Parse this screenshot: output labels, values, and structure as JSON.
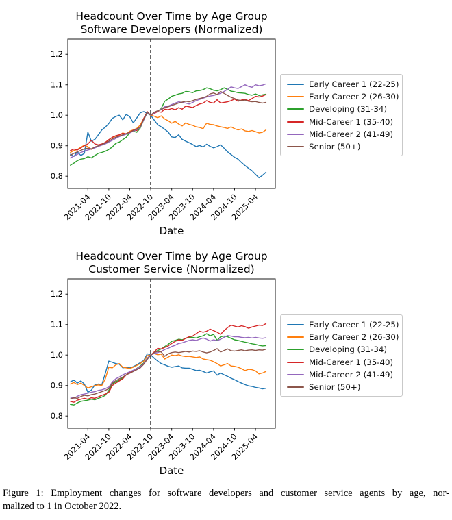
{
  "caption": {
    "line1": "Figure 1: Employment changes for software developers and customer service agents by age, nor-",
    "line2": "malized to 1 in October 2022."
  },
  "chart_data": [
    {
      "type": "line",
      "title_line1": "Headcount Over Time by Age Group",
      "title_line2": "Software Developers (Normalized)",
      "xlabel": "Date",
      "ylabel": "",
      "ylim": [
        0.76,
        1.25
      ],
      "y_tick_labels": [
        "0.8",
        "0.9",
        "1.0",
        "1.1",
        "1.2"
      ],
      "x_tick_labels": [
        "2021-04",
        "2021-10",
        "2022-04",
        "2022-10",
        "2023-04",
        "2023-10",
        "2024-04",
        "2024-10",
        "2025-04"
      ],
      "vline_x": "2022-10",
      "vline_style": "dashed",
      "legend_position": "right",
      "grid": false,
      "x": [
        "2020-11",
        "2020-12",
        "2021-01",
        "2021-02",
        "2021-03",
        "2021-04",
        "2021-05",
        "2021-06",
        "2021-07",
        "2021-08",
        "2021-09",
        "2021-10",
        "2021-11",
        "2021-12",
        "2022-01",
        "2022-02",
        "2022-03",
        "2022-04",
        "2022-05",
        "2022-06",
        "2022-07",
        "2022-08",
        "2022-09",
        "2022-10",
        "2022-11",
        "2022-12",
        "2023-01",
        "2023-02",
        "2023-03",
        "2023-04",
        "2023-05",
        "2023-06",
        "2023-07",
        "2023-08",
        "2023-09",
        "2023-10",
        "2023-11",
        "2023-12",
        "2024-01",
        "2024-02",
        "2024-03",
        "2024-04",
        "2024-05",
        "2024-06",
        "2024-07",
        "2024-08",
        "2024-09",
        "2024-10",
        "2024-11",
        "2024-12",
        "2025-01",
        "2025-02",
        "2025-03",
        "2025-04",
        "2025-05",
        "2025-06",
        "2025-07"
      ],
      "series": [
        {
          "name": "Early Career 1 (22-25)",
          "color": "#1f77b4",
          "values": [
            0.872,
            0.865,
            0.88,
            0.868,
            0.875,
            0.945,
            0.915,
            0.921,
            0.936,
            0.952,
            0.961,
            0.973,
            0.99,
            0.996,
            1.0,
            0.985,
            1.003,
            0.995,
            0.975,
            0.991,
            1.008,
            1.012,
            1.006,
            1.0,
            0.984,
            0.969,
            0.962,
            0.954,
            0.945,
            0.929,
            0.927,
            0.936,
            0.921,
            0.915,
            0.91,
            0.904,
            0.897,
            0.901,
            0.896,
            0.905,
            0.898,
            0.893,
            0.897,
            0.903,
            0.892,
            0.88,
            0.871,
            0.862,
            0.856,
            0.845,
            0.835,
            0.826,
            0.818,
            0.806,
            0.795,
            0.803,
            0.813
          ]
        },
        {
          "name": "Early Career 2 (26-30)",
          "color": "#ff7f0e",
          "values": [
            0.878,
            0.884,
            0.888,
            0.895,
            0.902,
            0.897,
            0.888,
            0.894,
            0.9,
            0.905,
            0.911,
            0.92,
            0.927,
            0.932,
            0.935,
            0.942,
            0.939,
            0.948,
            0.952,
            0.957,
            0.968,
            0.99,
            1.01,
            1.0,
            0.997,
            0.992,
            0.998,
            0.988,
            0.982,
            0.974,
            0.98,
            0.971,
            0.965,
            0.975,
            0.97,
            0.967,
            0.962,
            0.96,
            0.956,
            0.974,
            0.97,
            0.969,
            0.965,
            0.962,
            0.96,
            0.957,
            0.962,
            0.956,
            0.952,
            0.955,
            0.949,
            0.947,
            0.95,
            0.946,
            0.942,
            0.944,
            0.952
          ]
        },
        {
          "name": "Developing (31-34)",
          "color": "#2ca02c",
          "values": [
            0.836,
            0.843,
            0.851,
            0.856,
            0.858,
            0.864,
            0.86,
            0.868,
            0.875,
            0.878,
            0.882,
            0.888,
            0.896,
            0.908,
            0.912,
            0.92,
            0.928,
            0.943,
            0.948,
            0.944,
            0.958,
            0.985,
            1.008,
            1.0,
            1.006,
            1.013,
            1.022,
            1.046,
            1.053,
            1.062,
            1.066,
            1.07,
            1.072,
            1.078,
            1.077,
            1.074,
            1.08,
            1.081,
            1.084,
            1.09,
            1.087,
            1.082,
            1.08,
            1.084,
            1.09,
            1.085,
            1.079,
            1.077,
            1.074,
            1.073,
            1.072,
            1.068,
            1.066,
            1.07,
            1.065,
            1.067,
            1.069
          ]
        },
        {
          "name": "Mid-Career 1 (35-40)",
          "color": "#d62728",
          "values": [
            0.884,
            0.889,
            0.886,
            0.893,
            0.9,
            0.906,
            0.918,
            0.906,
            0.903,
            0.906,
            0.911,
            0.92,
            0.928,
            0.933,
            0.936,
            0.941,
            0.938,
            0.945,
            0.951,
            0.95,
            0.962,
            0.99,
            1.012,
            1.0,
            1.006,
            1.012,
            1.01,
            1.02,
            1.018,
            1.022,
            1.018,
            1.025,
            1.02,
            1.03,
            1.028,
            1.025,
            1.032,
            1.037,
            1.04,
            1.048,
            1.042,
            1.04,
            1.051,
            1.04,
            1.042,
            1.044,
            1.048,
            1.053,
            1.046,
            1.05,
            1.052,
            1.048,
            1.055,
            1.062,
            1.06,
            1.063,
            1.068
          ]
        },
        {
          "name": "Mid-Career 2 (41-49)",
          "color": "#9467bd",
          "values": [
            0.86,
            0.866,
            0.872,
            0.878,
            0.882,
            0.886,
            0.889,
            0.893,
            0.898,
            0.902,
            0.906,
            0.912,
            0.918,
            0.924,
            0.93,
            0.934,
            0.938,
            0.942,
            0.948,
            0.953,
            0.96,
            0.985,
            1.009,
            1.0,
            1.008,
            1.014,
            1.02,
            1.028,
            1.03,
            1.035,
            1.04,
            1.044,
            1.042,
            1.04,
            1.037,
            1.042,
            1.048,
            1.052,
            1.056,
            1.06,
            1.063,
            1.065,
            1.068,
            1.072,
            1.078,
            1.085,
            1.093,
            1.09,
            1.088,
            1.094,
            1.1,
            1.095,
            1.092,
            1.1,
            1.097,
            1.099,
            1.103
          ]
        },
        {
          "name": "Senior (50+)",
          "color": "#8c564b",
          "values": [
            0.869,
            0.875,
            0.88,
            0.885,
            0.89,
            0.892,
            0.89,
            0.896,
            0.9,
            0.904,
            0.909,
            0.915,
            0.922,
            0.928,
            0.932,
            0.936,
            0.94,
            0.944,
            0.95,
            0.955,
            0.962,
            0.987,
            1.011,
            1.0,
            1.01,
            1.015,
            1.018,
            1.025,
            1.028,
            1.032,
            1.036,
            1.04,
            1.043,
            1.046,
            1.044,
            1.048,
            1.052,
            1.055,
            1.058,
            1.062,
            1.07,
            1.073,
            1.068,
            1.078,
            1.072,
            1.065,
            1.059,
            1.055,
            1.05,
            1.048,
            1.05,
            1.046,
            1.044,
            1.045,
            1.042,
            1.04,
            1.042
          ]
        }
      ]
    },
    {
      "type": "line",
      "title_line1": "Headcount Over Time by Age Group",
      "title_line2": "Customer Service (Normalized)",
      "xlabel": "Date",
      "ylabel": "",
      "ylim": [
        0.76,
        1.25
      ],
      "y_tick_labels": [
        "0.8",
        "0.9",
        "1.0",
        "1.1",
        "1.2"
      ],
      "x_tick_labels": [
        "2021-04",
        "2021-10",
        "2022-04",
        "2022-10",
        "2023-04",
        "2023-10",
        "2024-04",
        "2024-10",
        "2025-04"
      ],
      "vline_x": "2022-10",
      "vline_style": "dashed",
      "legend_position": "right",
      "grid": false,
      "x": [
        "2020-11",
        "2020-12",
        "2021-01",
        "2021-02",
        "2021-03",
        "2021-04",
        "2021-05",
        "2021-06",
        "2021-07",
        "2021-08",
        "2021-09",
        "2021-10",
        "2021-11",
        "2021-12",
        "2022-01",
        "2022-02",
        "2022-03",
        "2022-04",
        "2022-05",
        "2022-06",
        "2022-07",
        "2022-08",
        "2022-09",
        "2022-10",
        "2022-11",
        "2022-12",
        "2023-01",
        "2023-02",
        "2023-03",
        "2023-04",
        "2023-05",
        "2023-06",
        "2023-07",
        "2023-08",
        "2023-09",
        "2023-10",
        "2023-11",
        "2023-12",
        "2024-01",
        "2024-02",
        "2024-03",
        "2024-04",
        "2024-05",
        "2024-06",
        "2024-07",
        "2024-08",
        "2024-09",
        "2024-10",
        "2024-11",
        "2024-12",
        "2025-01",
        "2025-02",
        "2025-03",
        "2025-04",
        "2025-05",
        "2025-06",
        "2025-07"
      ],
      "series": [
        {
          "name": "Early Career 1 (22-25)",
          "color": "#1f77b4",
          "values": [
            0.912,
            0.918,
            0.908,
            0.915,
            0.905,
            0.878,
            0.885,
            0.902,
            0.905,
            0.903,
            0.94,
            0.98,
            0.976,
            0.972,
            0.97,
            0.958,
            0.96,
            0.958,
            0.962,
            0.968,
            0.975,
            0.982,
            1.004,
            1.0,
            0.99,
            0.98,
            0.972,
            0.968,
            0.963,
            0.96,
            0.962,
            0.964,
            0.958,
            0.957,
            0.957,
            0.953,
            0.949,
            0.95,
            0.946,
            0.941,
            0.945,
            0.948,
            0.934,
            0.941,
            0.935,
            0.93,
            0.924,
            0.919,
            0.913,
            0.908,
            0.903,
            0.899,
            0.897,
            0.894,
            0.892,
            0.889,
            0.891
          ]
        },
        {
          "name": "Early Career 2 (26-30)",
          "color": "#ff7f0e",
          "values": [
            0.905,
            0.91,
            0.903,
            0.908,
            0.9,
            0.892,
            0.896,
            0.9,
            0.902,
            0.9,
            0.922,
            0.96,
            0.958,
            0.968,
            0.972,
            0.96,
            0.958,
            0.956,
            0.96,
            0.966,
            0.972,
            0.98,
            0.998,
            1.0,
            1.005,
            1.001,
            1.003,
            0.987,
            0.993,
            1.0,
            0.998,
            1.001,
            0.997,
            0.995,
            0.996,
            0.994,
            0.992,
            0.994,
            0.987,
            0.985,
            0.983,
            0.978,
            0.972,
            0.964,
            0.968,
            0.972,
            0.964,
            0.963,
            0.96,
            0.955,
            0.949,
            0.953,
            0.952,
            0.948,
            0.938,
            0.941,
            0.946
          ]
        },
        {
          "name": "Developing (31-34)",
          "color": "#2ca02c",
          "values": [
            0.838,
            0.836,
            0.843,
            0.848,
            0.85,
            0.852,
            0.855,
            0.853,
            0.858,
            0.862,
            0.868,
            0.884,
            0.905,
            0.912,
            0.918,
            0.925,
            0.935,
            0.942,
            0.95,
            0.956,
            0.964,
            0.974,
            0.99,
            1.0,
            1.008,
            1.015,
            1.02,
            1.028,
            1.035,
            1.045,
            1.048,
            1.052,
            1.05,
            1.055,
            1.058,
            1.058,
            1.056,
            1.06,
            1.063,
            1.07,
            1.063,
            1.068,
            1.048,
            1.06,
            1.062,
            1.06,
            1.055,
            1.05,
            1.048,
            1.045,
            1.042,
            1.04,
            1.037,
            1.035,
            1.032,
            1.03,
            1.031
          ]
        },
        {
          "name": "Mid-Career 1 (35-40)",
          "color": "#d62728",
          "values": [
            0.848,
            0.845,
            0.852,
            0.855,
            0.858,
            0.855,
            0.86,
            0.858,
            0.863,
            0.868,
            0.872,
            0.878,
            0.9,
            0.908,
            0.915,
            0.922,
            0.935,
            0.942,
            0.948,
            0.955,
            0.962,
            0.972,
            0.988,
            1.0,
            1.01,
            1.022,
            1.02,
            1.025,
            1.03,
            1.038,
            1.045,
            1.05,
            1.048,
            1.055,
            1.06,
            1.062,
            1.07,
            1.078,
            1.075,
            1.078,
            1.085,
            1.08,
            1.075,
            1.068,
            1.08,
            1.09,
            1.098,
            1.095,
            1.092,
            1.096,
            1.093,
            1.088,
            1.092,
            1.095,
            1.098,
            1.097,
            1.103
          ]
        },
        {
          "name": "Mid-Career 2 (41-49)",
          "color": "#9467bd",
          "values": [
            0.862,
            0.858,
            0.865,
            0.87,
            0.872,
            0.875,
            0.878,
            0.88,
            0.884,
            0.886,
            0.89,
            0.895,
            0.912,
            0.922,
            0.928,
            0.935,
            0.94,
            0.945,
            0.95,
            0.955,
            0.962,
            0.972,
            0.99,
            1.0,
            1.005,
            1.008,
            1.012,
            1.018,
            1.022,
            1.028,
            1.032,
            1.038,
            1.04,
            1.044,
            1.048,
            1.05,
            1.048,
            1.052,
            1.056,
            1.052,
            1.046,
            1.05,
            1.047,
            1.052,
            1.058,
            1.064,
            1.062,
            1.06,
            1.06,
            1.058,
            1.057,
            1.058,
            1.056,
            1.058,
            1.056,
            1.055,
            1.057
          ]
        },
        {
          "name": "Senior (50+)",
          "color": "#8c564b",
          "values": [
            0.856,
            0.86,
            0.858,
            0.864,
            0.868,
            0.866,
            0.87,
            0.872,
            0.876,
            0.88,
            0.884,
            0.89,
            0.908,
            0.916,
            0.922,
            0.928,
            0.935,
            0.94,
            0.946,
            0.952,
            0.958,
            0.97,
            0.986,
            1.0,
            1.008,
            1.012,
            1.01,
            0.996,
            1.004,
            1.008,
            1.01,
            1.008,
            1.01,
            1.012,
            1.01,
            1.013,
            1.012,
            1.014,
            1.01,
            1.007,
            1.01,
            1.015,
            1.021,
            1.01,
            1.015,
            1.02,
            1.014,
            1.013,
            1.015,
            1.017,
            1.014,
            1.016,
            1.017,
            1.015,
            1.017,
            1.016,
            1.019
          ]
        }
      ]
    }
  ]
}
